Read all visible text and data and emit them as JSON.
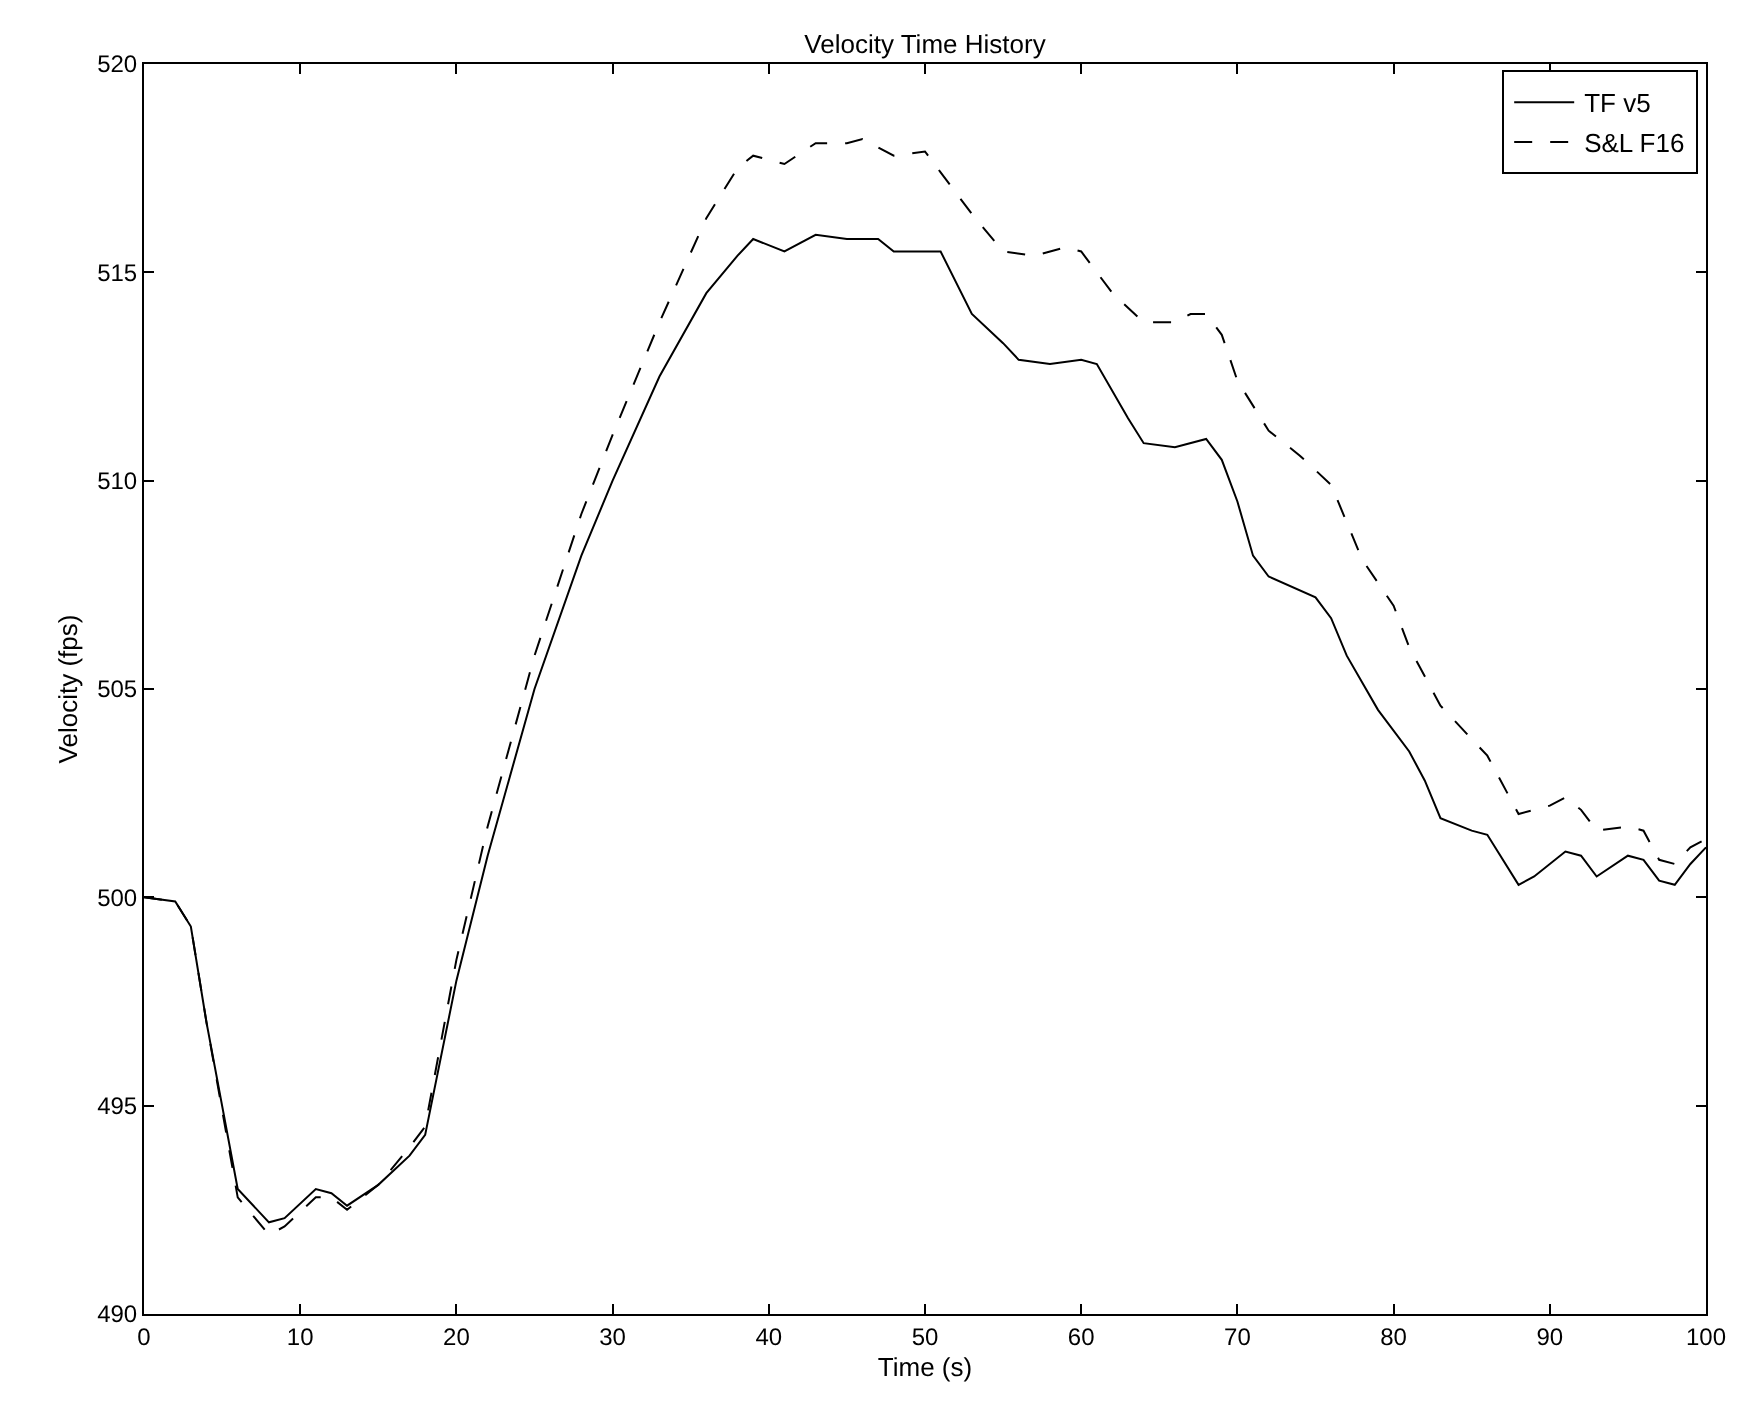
{
  "chart_data": {
    "type": "line",
    "title": "Velocity Time History",
    "xlabel": "Time (s)",
    "ylabel": "Velocity (fps)",
    "xlim": [
      0,
      100
    ],
    "xticks": [
      0,
      10,
      20,
      30,
      40,
      50,
      60,
      70,
      80,
      90,
      100
    ],
    "ylim": [
      490,
      520
    ],
    "yticks": [
      490,
      495,
      500,
      505,
      510,
      515,
      520
    ],
    "legend": "top right",
    "series": [
      {
        "name": "TF v5",
        "color": "#000000",
        "line_style": "solid",
        "x": [
          0,
          2,
          3,
          4,
          6,
          8,
          9,
          11,
          12,
          13,
          15,
          17,
          18,
          20,
          22,
          25,
          28,
          30,
          33,
          36,
          38,
          39,
          41,
          43,
          45,
          47,
          48,
          51,
          53,
          55,
          56,
          58,
          60,
          61,
          63,
          64,
          66,
          68,
          69,
          70,
          71,
          72,
          75,
          76,
          77,
          79,
          81,
          82,
          83,
          85,
          86,
          88,
          89,
          91,
          92,
          93,
          95,
          96,
          97,
          98,
          99,
          100
        ],
        "values": [
          500,
          499.9,
          499.3,
          497,
          493,
          492.2,
          492.3,
          493,
          492.9,
          492.6,
          493.1,
          493.8,
          494.3,
          498,
          501,
          505,
          508.2,
          510,
          512.5,
          514.5,
          515.4,
          515.8,
          515.5,
          515.9,
          515.8,
          515.8,
          515.5,
          515.5,
          514,
          513.3,
          512.9,
          512.8,
          512.9,
          512.8,
          511.5,
          510.9,
          510.8,
          511,
          510.5,
          509.5,
          508.2,
          507.7,
          507.2,
          506.7,
          505.8,
          504.5,
          503.5,
          502.8,
          501.9,
          501.6,
          501.5,
          500.3,
          500.5,
          501.1,
          501,
          500.5,
          501,
          500.9,
          500.4,
          500.3,
          500.8,
          501.2
        ]
      },
      {
        "name": "S&L F16",
        "color": "#000000",
        "line_style": "dashed",
        "x": [
          0,
          2,
          3,
          4,
          6,
          8,
          9,
          11,
          12,
          13,
          15,
          17,
          18,
          20,
          22,
          25,
          28,
          30,
          33,
          36,
          38,
          39,
          40,
          41,
          43,
          45,
          46,
          47,
          48,
          50,
          51,
          53,
          55,
          57,
          59,
          60,
          62,
          64,
          66,
          67,
          68,
          69,
          70,
          72,
          74,
          76,
          78,
          80,
          81,
          83,
          85,
          86,
          88,
          90,
          91,
          92,
          93,
          95,
          96,
          97,
          98,
          99,
          100
        ],
        "values": [
          500,
          499.9,
          499.3,
          497,
          492.8,
          491.9,
          492.1,
          492.8,
          492.8,
          492.5,
          493.1,
          494,
          494.5,
          498.5,
          501.7,
          505.8,
          509.2,
          511.1,
          513.8,
          516.3,
          517.5,
          517.8,
          517.7,
          517.6,
          518.1,
          518.1,
          518.2,
          518,
          517.8,
          517.9,
          517.4,
          516.4,
          515.5,
          515.4,
          515.6,
          515.5,
          514.5,
          513.8,
          513.8,
          514,
          514,
          513.5,
          512.4,
          511.2,
          510.6,
          509.9,
          508.1,
          507,
          506,
          504.6,
          503.8,
          503.4,
          502,
          502.2,
          502.4,
          502.1,
          501.6,
          501.7,
          501.6,
          500.9,
          500.8,
          501.2,
          501.4
        ]
      }
    ]
  }
}
